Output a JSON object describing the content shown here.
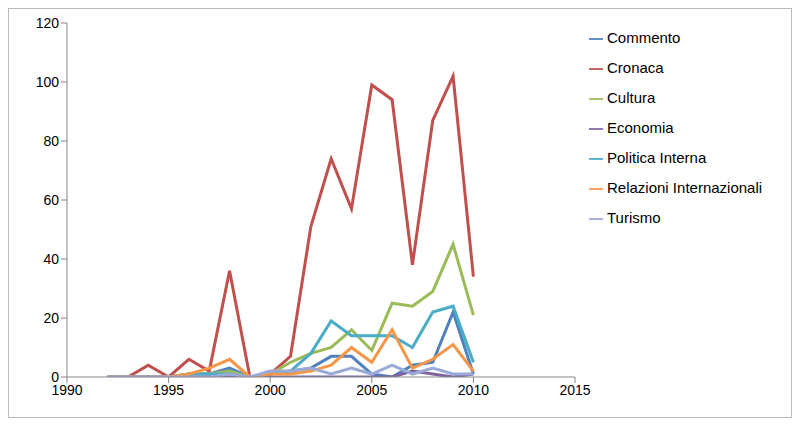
{
  "chart_data": {
    "type": "line",
    "x": [
      1992,
      1993,
      1994,
      1995,
      1996,
      1997,
      1998,
      1999,
      2000,
      2001,
      2002,
      2003,
      2004,
      2005,
      2006,
      2007,
      2008,
      2009,
      2010
    ],
    "series": [
      {
        "name": "Commento",
        "color": "#4f81bd",
        "values": [
          0,
          0,
          0,
          0,
          1,
          1,
          3,
          0,
          1,
          2,
          3,
          7,
          7,
          1,
          0,
          4,
          5,
          22,
          1
        ]
      },
      {
        "name": "Cronaca",
        "color": "#c0504d",
        "values": [
          0,
          0,
          4,
          0,
          6,
          2,
          36,
          0,
          1,
          7,
          51,
          74,
          57,
          99,
          94,
          38,
          87,
          102,
          34
        ]
      },
      {
        "name": "Cultura",
        "color": "#9bbb59",
        "values": [
          0,
          0,
          0,
          0,
          1,
          1,
          2,
          0,
          1,
          5,
          8,
          10,
          16,
          9,
          25,
          24,
          29,
          45,
          21
        ]
      },
      {
        "name": "Economia",
        "color": "#8064a2",
        "values": [
          0,
          0,
          0,
          0,
          0,
          0,
          0,
          0,
          0,
          0,
          0,
          0,
          0,
          0,
          0,
          2,
          1,
          0,
          1
        ]
      },
      {
        "name": "Politica Interna",
        "color": "#4bacc6",
        "values": [
          0,
          0,
          0,
          0,
          1,
          1,
          1,
          0,
          1,
          2,
          8,
          19,
          14,
          14,
          14,
          10,
          22,
          24,
          5
        ]
      },
      {
        "name": "Relazioni Internazionali",
        "color": "#f79646",
        "values": [
          0,
          0,
          0,
          0,
          1,
          3,
          6,
          0,
          1,
          1,
          2,
          4,
          10,
          5,
          16,
          3,
          6,
          11,
          2
        ]
      },
      {
        "name": "Turismo",
        "color": "#9aaad8",
        "values": [
          0,
          0,
          0,
          0,
          0,
          0,
          1,
          0,
          2,
          2,
          3,
          1,
          3,
          1,
          4,
          1,
          3,
          1,
          1
        ]
      }
    ],
    "xlim": [
      1990,
      2015
    ],
    "xticks": [
      1990,
      1995,
      2000,
      2005,
      2010,
      2015
    ],
    "ylim": [
      0,
      120
    ],
    "yticks": [
      0,
      20,
      40,
      60,
      80,
      100,
      120
    ],
    "grid": false,
    "legend": "right"
  }
}
